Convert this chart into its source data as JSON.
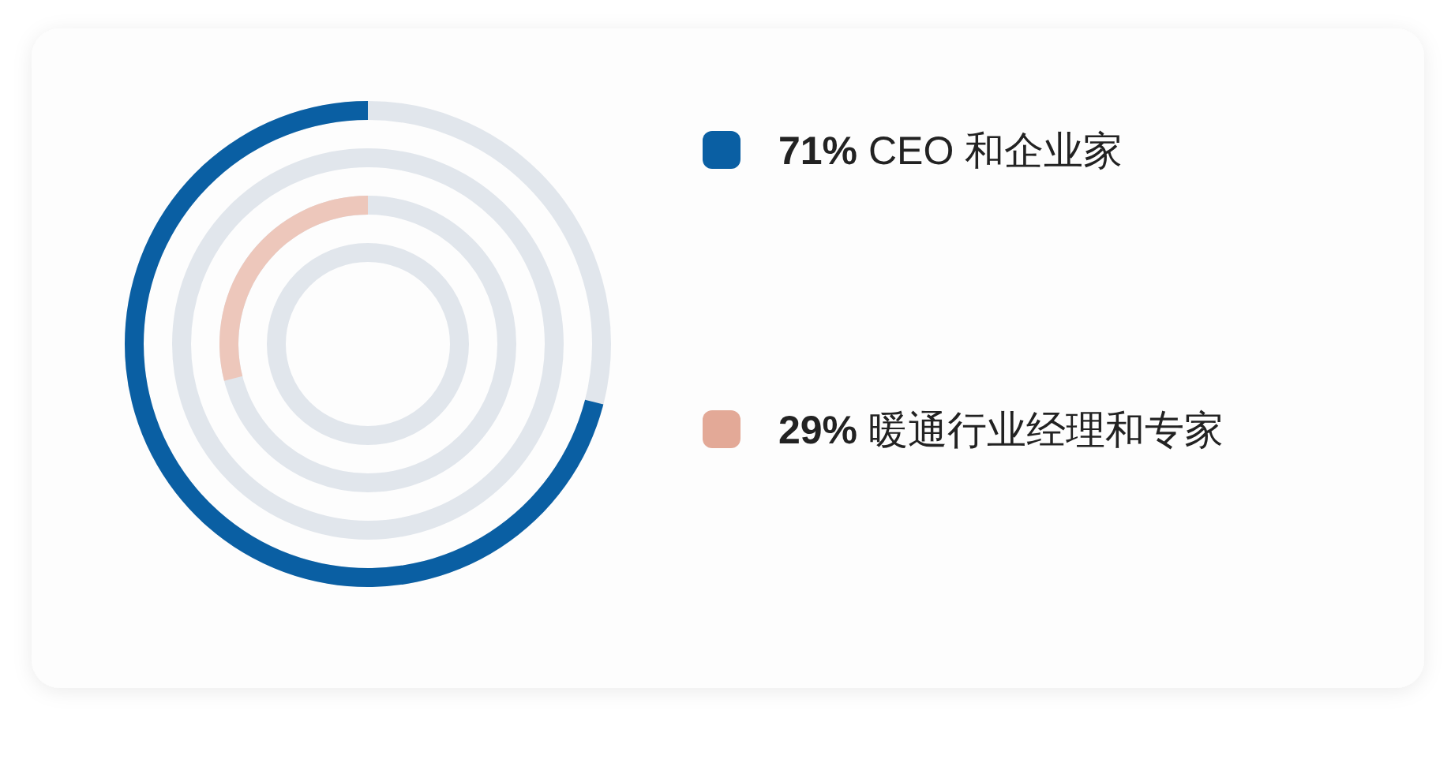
{
  "chart_data": {
    "type": "other",
    "categories": [
      "CEO 和企业家",
      "暖通行业经理和专家"
    ],
    "values": [
      71,
      29
    ],
    "value_labels": [
      "71%",
      "29%"
    ],
    "colors": [
      "#0a5fa3",
      "#e3a997"
    ]
  }
}
